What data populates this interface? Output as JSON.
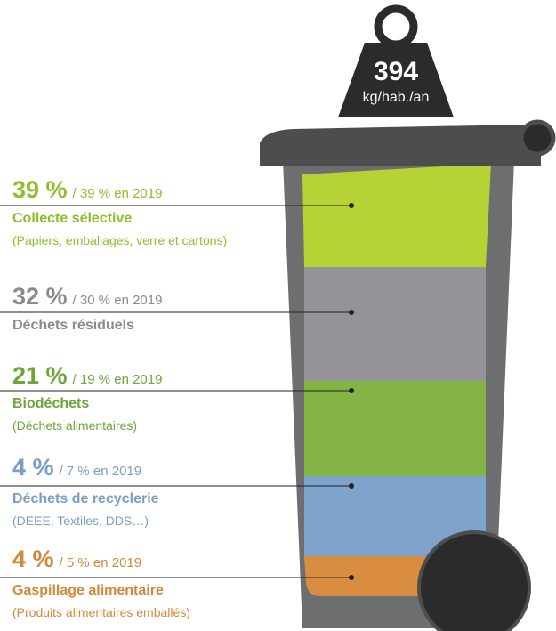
{
  "weight": {
    "value": "394",
    "unit": "kg/hab./an"
  },
  "items": [
    {
      "percent": "39 %",
      "previous": "/ 39 % en 2019",
      "label": "Collecte sélective",
      "detail": "(Papiers, emballages, verre et cartons)"
    },
    {
      "percent": "32 %",
      "previous": "/ 30 % en 2019",
      "label": "Déchets résiduels"
    },
    {
      "percent": "21 %",
      "previous": "/ 19 % en 2019",
      "label": "Biodéchets",
      "detail": "(Déchets alimentaires)"
    },
    {
      "percent": "4 %",
      "previous": "/ 7 % en 2019",
      "label": "Déchets de recyclerie",
      "detail": "(DEEE, Textiles, DDS…)"
    },
    {
      "percent": "4 %",
      "previous": "/ 5 % en 2019",
      "label": "Gaspillage alimentaire",
      "detail": "(Produits alimentaires emballés)"
    }
  ]
}
